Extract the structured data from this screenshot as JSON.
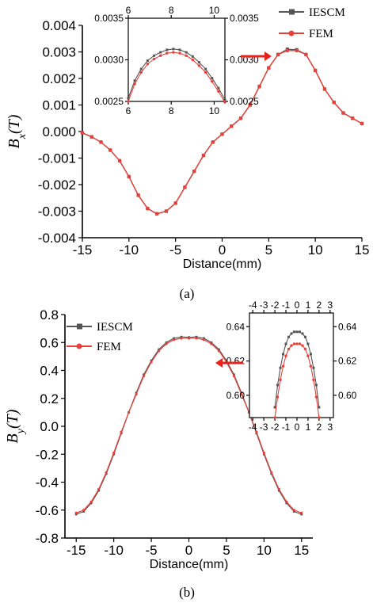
{
  "chart_data": [
    {
      "panel": "a",
      "type": "line",
      "caption": "(a)",
      "xlabel": "Distance(mm)",
      "ylabel_main": "B",
      "ylabel_sub": "x",
      "ylabel_tail": "(T)",
      "xlim": [
        -15,
        15
      ],
      "ylim": [
        -0.004,
        0.004
      ],
      "xticks": [
        -15,
        -10,
        -5,
        0,
        5,
        10,
        15
      ],
      "yticks": [
        -0.004,
        -0.003,
        -0.002,
        -0.001,
        0.0,
        0.001,
        0.002,
        0.003,
        0.004
      ],
      "ytick_labels": [
        "-0.004",
        "-0.003",
        "-0.002",
        "-0.001",
        "0.000",
        "0.001",
        "0.002",
        "0.003",
        "0.004"
      ],
      "legend": {
        "placement": "top-right"
      },
      "series": [
        {
          "name": "IESCM",
          "color": "#555555",
          "marker": "square",
          "x": [
            -15,
            -14,
            -13,
            -12,
            -11,
            -10,
            -9,
            -8,
            -7,
            -6,
            -5,
            -4,
            -3,
            -2,
            -1,
            0,
            1,
            2,
            3,
            4,
            5,
            6,
            7,
            8,
            9,
            10,
            11,
            12,
            13,
            14,
            15
          ],
          "y": [
            -5e-05,
            -0.0002,
            -0.0004,
            -0.0007,
            -0.0011,
            -0.0017,
            -0.0024,
            -0.0029,
            -0.0031,
            -0.003,
            -0.0027,
            -0.0021,
            -0.0015,
            -0.0009,
            -0.0004,
            -0.0001,
            0.0002,
            0.0005,
            0.001,
            0.0017,
            0.0024,
            0.0029,
            0.0031,
            0.00308,
            0.0029,
            0.0023,
            0.0016,
            0.0011,
            0.0007,
            0.0005,
            0.0003
          ]
        },
        {
          "name": "FEM",
          "color": "#e8413a",
          "marker": "circle",
          "x": [
            -15,
            -14,
            -13,
            -12,
            -11,
            -10,
            -9,
            -8,
            -7,
            -6,
            -5,
            -4,
            -3,
            -2,
            -1,
            0,
            1,
            2,
            3,
            4,
            5,
            6,
            7,
            8,
            9,
            10,
            11,
            12,
            13,
            14,
            15
          ],
          "y": [
            -5e-05,
            -0.0002,
            -0.0004,
            -0.0007,
            -0.0011,
            -0.0017,
            -0.0024,
            -0.0029,
            -0.0031,
            -0.003,
            -0.0027,
            -0.0021,
            -0.0015,
            -0.0009,
            -0.0004,
            -0.0001,
            0.0002,
            0.0005,
            0.001,
            0.0017,
            0.0024,
            0.0029,
            0.00305,
            0.00305,
            0.0029,
            0.0023,
            0.0016,
            0.0011,
            0.0007,
            0.0005,
            0.0003
          ]
        }
      ],
      "inset": {
        "xlim": [
          6,
          10.5
        ],
        "ylim": [
          0.0025,
          0.0035
        ],
        "xticks": [
          6,
          8,
          10
        ],
        "yticks": [
          0.0025,
          0.003,
          0.0035
        ],
        "ytick_labels": [
          "0.0025",
          "0.0030",
          "0.0035"
        ],
        "series": [
          {
            "name": "IESCM",
            "x": [
              6.0,
              6.3,
              6.6,
              6.9,
              7.2,
              7.5,
              7.8,
              8.1,
              8.4,
              8.7,
              9.0,
              9.3,
              9.6,
              9.9,
              10.2,
              10.5
            ],
            "y": [
              0.00254,
              0.00275,
              0.00289,
              0.00299,
              0.00305,
              0.00309,
              0.00312,
              0.00313,
              0.00312,
              0.00309,
              0.00304,
              0.00297,
              0.00289,
              0.00278,
              0.00266,
              0.00252
            ]
          },
          {
            "name": "FEM",
            "x": [
              6.0,
              6.3,
              6.6,
              6.9,
              7.2,
              7.5,
              7.8,
              8.1,
              8.4,
              8.7,
              9.0,
              9.3,
              9.6,
              9.9,
              10.2,
              10.5
            ],
            "y": [
              0.0025,
              0.00271,
              0.00285,
              0.00295,
              0.00301,
              0.00305,
              0.00308,
              0.00309,
              0.00308,
              0.00305,
              0.003,
              0.00293,
              0.00285,
              0.00274,
              0.00262,
              0.00249
            ]
          }
        ]
      }
    },
    {
      "panel": "b",
      "type": "line",
      "caption": "(b)",
      "xlabel": "Distance(mm)",
      "ylabel_main": "B",
      "ylabel_sub": "y",
      "ylabel_tail": "(T)",
      "xlim": [
        -16.5,
        16.5
      ],
      "ylim": [
        -0.8,
        0.8
      ],
      "xticks": [
        -15,
        -10,
        -5,
        0,
        5,
        10,
        15
      ],
      "yticks": [
        -0.8,
        -0.6,
        -0.4,
        -0.2,
        0.0,
        0.2,
        0.4,
        0.6,
        0.8
      ],
      "ytick_labels": [
        "-0.8",
        "-0.6",
        "-0.4",
        "-0.2",
        "0.0",
        "0.2",
        "0.4",
        "0.6",
        "0.8"
      ],
      "legend": {
        "placement": "top-left"
      },
      "series": [
        {
          "name": "IESCM",
          "color": "#555555",
          "marker": "square",
          "x": [
            -15,
            -14,
            -13,
            -12,
            -11,
            -10,
            -9,
            -8,
            -7,
            -6,
            -5,
            -4,
            -3,
            -2,
            -1,
            0,
            1,
            2,
            3,
            4,
            5,
            6,
            7,
            8,
            9,
            10,
            11,
            12,
            13,
            14,
            15
          ],
          "y": [
            -0.63,
            -0.61,
            -0.55,
            -0.46,
            -0.34,
            -0.2,
            -0.05,
            0.1,
            0.24,
            0.37,
            0.47,
            0.55,
            0.6,
            0.63,
            0.64,
            0.637,
            0.64,
            0.63,
            0.6,
            0.55,
            0.47,
            0.37,
            0.24,
            0.1,
            -0.05,
            -0.2,
            -0.34,
            -0.46,
            -0.55,
            -0.61,
            -0.63
          ]
        },
        {
          "name": "FEM",
          "color": "#e8413a",
          "marker": "circle",
          "x": [
            -15,
            -14,
            -13,
            -12,
            -11,
            -10,
            -9,
            -8,
            -7,
            -6,
            -5,
            -4,
            -3,
            -2,
            -1,
            0,
            1,
            2,
            3,
            4,
            5,
            6,
            7,
            8,
            9,
            10,
            11,
            12,
            13,
            14,
            15
          ],
          "y": [
            -0.62,
            -0.6,
            -0.54,
            -0.45,
            -0.33,
            -0.19,
            -0.04,
            0.1,
            0.23,
            0.36,
            0.46,
            0.54,
            0.59,
            0.62,
            0.63,
            0.63,
            0.63,
            0.62,
            0.59,
            0.54,
            0.46,
            0.36,
            0.23,
            0.1,
            -0.04,
            -0.19,
            -0.33,
            -0.45,
            -0.54,
            -0.6,
            -0.62
          ]
        }
      ],
      "inset": {
        "xlim": [
          -4.3,
          3.3
        ],
        "ylim": [
          0.587,
          0.648
        ],
        "xticks": [
          -4,
          -3,
          -2,
          -1,
          0,
          1,
          2,
          3
        ],
        "yticks": [
          0.6,
          0.62,
          0.64
        ],
        "ytick_labels": [
          "0.60",
          "0.62",
          "0.64"
        ],
        "series": [
          {
            "name": "IESCM",
            "x": [
              -2.0,
              -1.75,
              -1.5,
              -1.25,
              -1.0,
              -0.75,
              -0.5,
              -0.25,
              0.0,
              0.25,
              0.5,
              0.75,
              1.0,
              1.25,
              1.5,
              1.75,
              2.0
            ],
            "y": [
              0.593,
              0.606,
              0.616,
              0.624,
              0.63,
              0.634,
              0.636,
              0.637,
              0.637,
              0.637,
              0.636,
              0.634,
              0.63,
              0.624,
              0.616,
              0.606,
              0.593
            ]
          },
          {
            "name": "FEM",
            "x": [
              -2.0,
              -1.75,
              -1.5,
              -1.25,
              -1.0,
              -0.75,
              -0.5,
              -0.25,
              0.0,
              0.25,
              0.5,
              0.75,
              1.0,
              1.25,
              1.5,
              1.75,
              2.0
            ],
            "y": [
              0.587,
              0.599,
              0.609,
              0.617,
              0.623,
              0.627,
              0.629,
              0.63,
              0.63,
              0.63,
              0.629,
              0.627,
              0.623,
              0.617,
              0.609,
              0.599,
              0.587
            ]
          }
        ]
      }
    }
  ]
}
